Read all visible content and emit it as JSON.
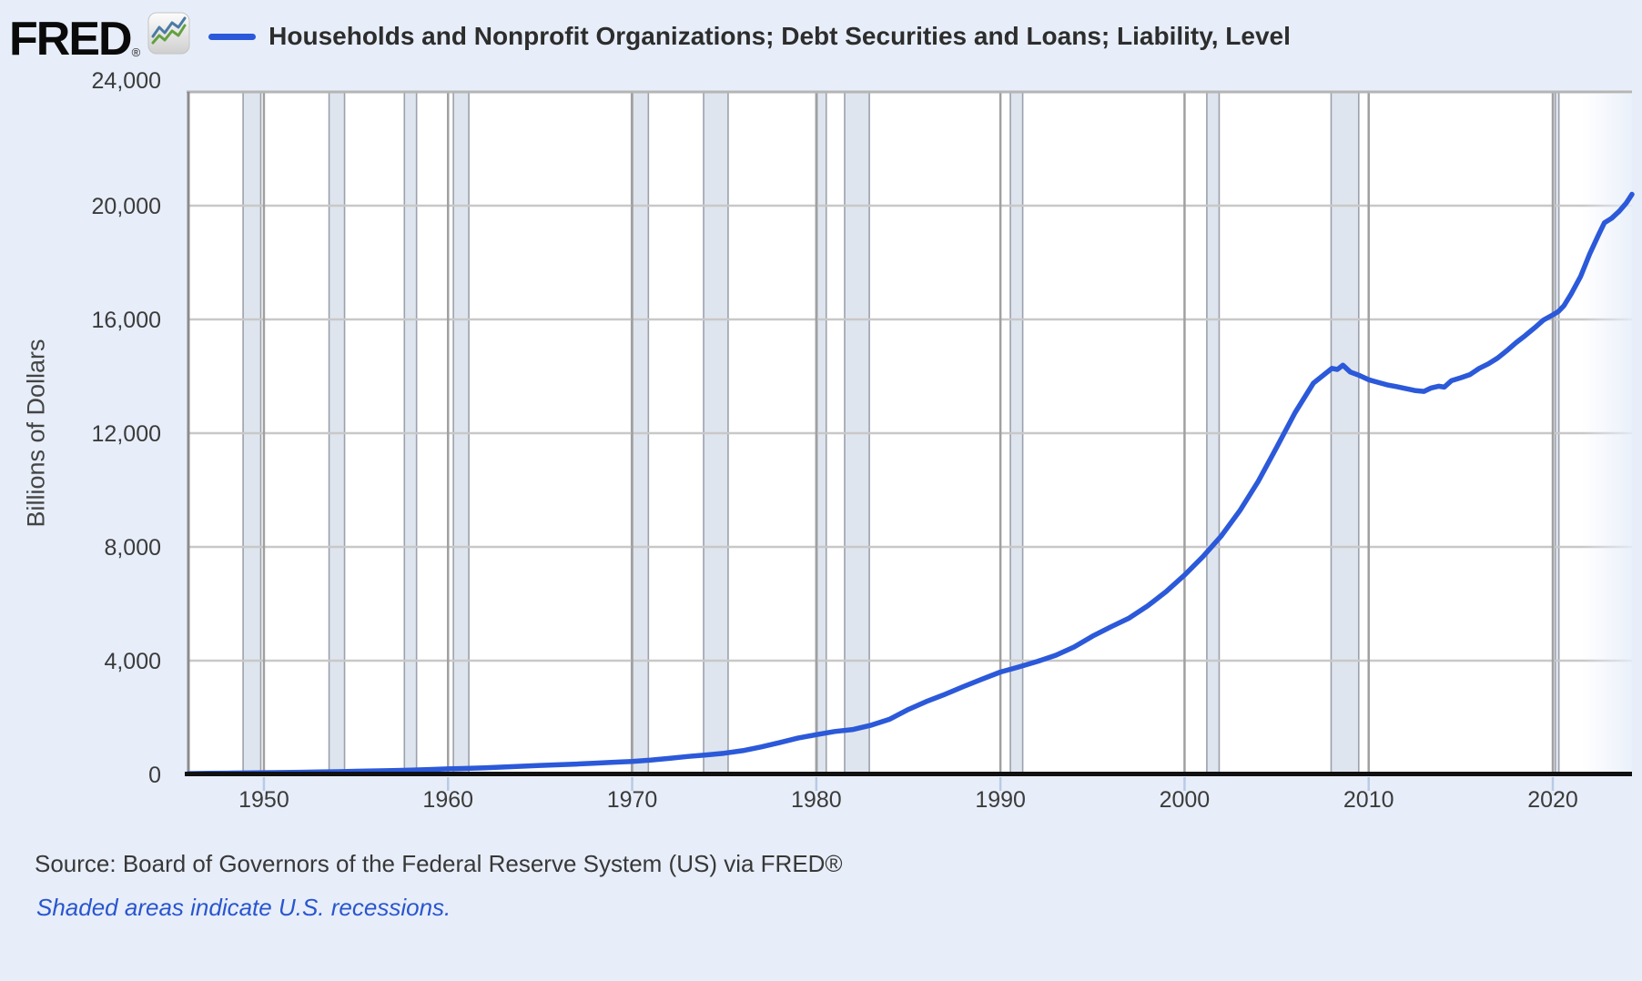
{
  "header": {
    "logo_text": "FRED",
    "logo_reg": "®",
    "title": "Households and Nonprofit Organizations; Debt Securities and Loans; Liability, Level"
  },
  "footer": {
    "source": "Source: Board of Governors of the Federal Reserve System (US) via FRED®",
    "note": "Shaded areas indicate U.S. recessions."
  },
  "colors": {
    "page_bg": "#e7eef9",
    "plot_bg": "#ffffff",
    "series_line": "#2b59d9",
    "grid_horizontal": "#c8c8c8",
    "grid_vertical": "#a0a0a0",
    "plot_top_border": "#b5b5b5",
    "plot_left_border": "#8c8c8c",
    "axis_line": "#111111",
    "recession_fill": "#dfe5ee",
    "recession_edge": "#9ba1ab",
    "tick_mark": "#b8cbe5",
    "tick_label": "#3b3b3b",
    "note_blue": "#2a55cf",
    "logo_icon_blue": "#4a7aa5",
    "logo_icon_green": "#63a03f"
  },
  "chart_data": {
    "type": "line",
    "title": "Households and Nonprofit Organizations; Debt Securities and Loans; Liability, Level",
    "xlabel": "",
    "ylabel": "Billions of Dollars",
    "x_range": [
      1945.9,
      2024.3
    ],
    "y_range": [
      0,
      24000
    ],
    "grid": true,
    "legend_position": "top",
    "y_ticks": [
      {
        "value": 0,
        "label": "0"
      },
      {
        "value": 4000,
        "label": "4,000"
      },
      {
        "value": 8000,
        "label": "8,000"
      },
      {
        "value": 12000,
        "label": "12,000"
      },
      {
        "value": 16000,
        "label": "16,000"
      },
      {
        "value": 20000,
        "label": "20,000"
      },
      {
        "value": 24000,
        "label": "24,000"
      }
    ],
    "x_ticks": [
      {
        "value": 1950,
        "label": "1950"
      },
      {
        "value": 1960,
        "label": "1960"
      },
      {
        "value": 1970,
        "label": "1970"
      },
      {
        "value": 1980,
        "label": "1980"
      },
      {
        "value": 1990,
        "label": "1990"
      },
      {
        "value": 2000,
        "label": "2000"
      },
      {
        "value": 2010,
        "label": "2010"
      },
      {
        "value": 2020,
        "label": "2020"
      }
    ],
    "recessions": [
      [
        1948.87,
        1949.83
      ],
      [
        1953.54,
        1954.38
      ],
      [
        1957.63,
        1958.29
      ],
      [
        1960.29,
        1961.13
      ],
      [
        1969.96,
        1970.88
      ],
      [
        1973.88,
        1975.21
      ],
      [
        1980.04,
        1980.54
      ],
      [
        1981.54,
        1982.88
      ],
      [
        1990.54,
        1991.21
      ],
      [
        2001.21,
        2001.88
      ],
      [
        2007.96,
        2009.46
      ],
      [
        2020.13,
        2020.33
      ]
    ],
    "series": [
      {
        "name": "Households and Nonprofit Organizations; Debt Securities and Loans; Liability, Level",
        "color": "#2b59d9",
        "units": "Billions of Dollars",
        "points": [
          [
            1945.9,
            30
          ],
          [
            1947,
            40
          ],
          [
            1948,
            46
          ],
          [
            1949,
            52
          ],
          [
            1950,
            60
          ],
          [
            1951,
            68
          ],
          [
            1952,
            77
          ],
          [
            1953,
            87
          ],
          [
            1954,
            97
          ],
          [
            1955,
            113
          ],
          [
            1956,
            126
          ],
          [
            1957,
            138
          ],
          [
            1958,
            151
          ],
          [
            1959,
            172
          ],
          [
            1960,
            194
          ],
          [
            1961,
            212
          ],
          [
            1962,
            234
          ],
          [
            1963,
            260
          ],
          [
            1964,
            288
          ],
          [
            1965,
            316
          ],
          [
            1966,
            340
          ],
          [
            1967,
            366
          ],
          [
            1968,
            398
          ],
          [
            1969,
            428
          ],
          [
            1970,
            459
          ],
          [
            1971,
            503
          ],
          [
            1972,
            563
          ],
          [
            1973,
            630
          ],
          [
            1974,
            686
          ],
          [
            1975,
            746
          ],
          [
            1976,
            836
          ],
          [
            1977,
            966
          ],
          [
            1978,
            1116
          ],
          [
            1979,
            1276
          ],
          [
            1980,
            1400
          ],
          [
            1981,
            1512
          ],
          [
            1982,
            1580
          ],
          [
            1983,
            1735
          ],
          [
            1984,
            1945
          ],
          [
            1985,
            2285
          ],
          [
            1986,
            2570
          ],
          [
            1987,
            2820
          ],
          [
            1988,
            3090
          ],
          [
            1989,
            3350
          ],
          [
            1990,
            3600
          ],
          [
            1991,
            3780
          ],
          [
            1992,
            3970
          ],
          [
            1993,
            4190
          ],
          [
            1994,
            4480
          ],
          [
            1995,
            4860
          ],
          [
            1996,
            5190
          ],
          [
            1997,
            5500
          ],
          [
            1998,
            5930
          ],
          [
            1999,
            6430
          ],
          [
            2000,
            7010
          ],
          [
            2001,
            7660
          ],
          [
            2002,
            8390
          ],
          [
            2003,
            9270
          ],
          [
            2004,
            10300
          ],
          [
            2005,
            11500
          ],
          [
            2006,
            12720
          ],
          [
            2007,
            13760
          ],
          [
            2008,
            14280
          ],
          [
            2008.3,
            14240
          ],
          [
            2008.6,
            14390
          ],
          [
            2009,
            14150
          ],
          [
            2009.5,
            14030
          ],
          [
            2010,
            13880
          ],
          [
            2010.5,
            13790
          ],
          [
            2011,
            13700
          ],
          [
            2011.5,
            13640
          ],
          [
            2012,
            13570
          ],
          [
            2012.5,
            13500
          ],
          [
            2013,
            13470
          ],
          [
            2013.4,
            13590
          ],
          [
            2013.8,
            13650
          ],
          [
            2014.1,
            13620
          ],
          [
            2014.5,
            13850
          ],
          [
            2015,
            13950
          ],
          [
            2015.5,
            14060
          ],
          [
            2016,
            14280
          ],
          [
            2016.5,
            14440
          ],
          [
            2017,
            14640
          ],
          [
            2017.5,
            14900
          ],
          [
            2018,
            15180
          ],
          [
            2018.5,
            15430
          ],
          [
            2019,
            15700
          ],
          [
            2019.5,
            15980
          ],
          [
            2020,
            16160
          ],
          [
            2020.3,
            16280
          ],
          [
            2020.6,
            16480
          ],
          [
            2021,
            16900
          ],
          [
            2021.5,
            17500
          ],
          [
            2022,
            18300
          ],
          [
            2022.5,
            19000
          ],
          [
            2022.8,
            19400
          ],
          [
            2023.2,
            19560
          ],
          [
            2023.6,
            19800
          ],
          [
            2024,
            20100
          ],
          [
            2024.3,
            20400
          ]
        ]
      }
    ],
    "annotations": [
      "Shaded areas indicate U.S. recessions."
    ]
  }
}
